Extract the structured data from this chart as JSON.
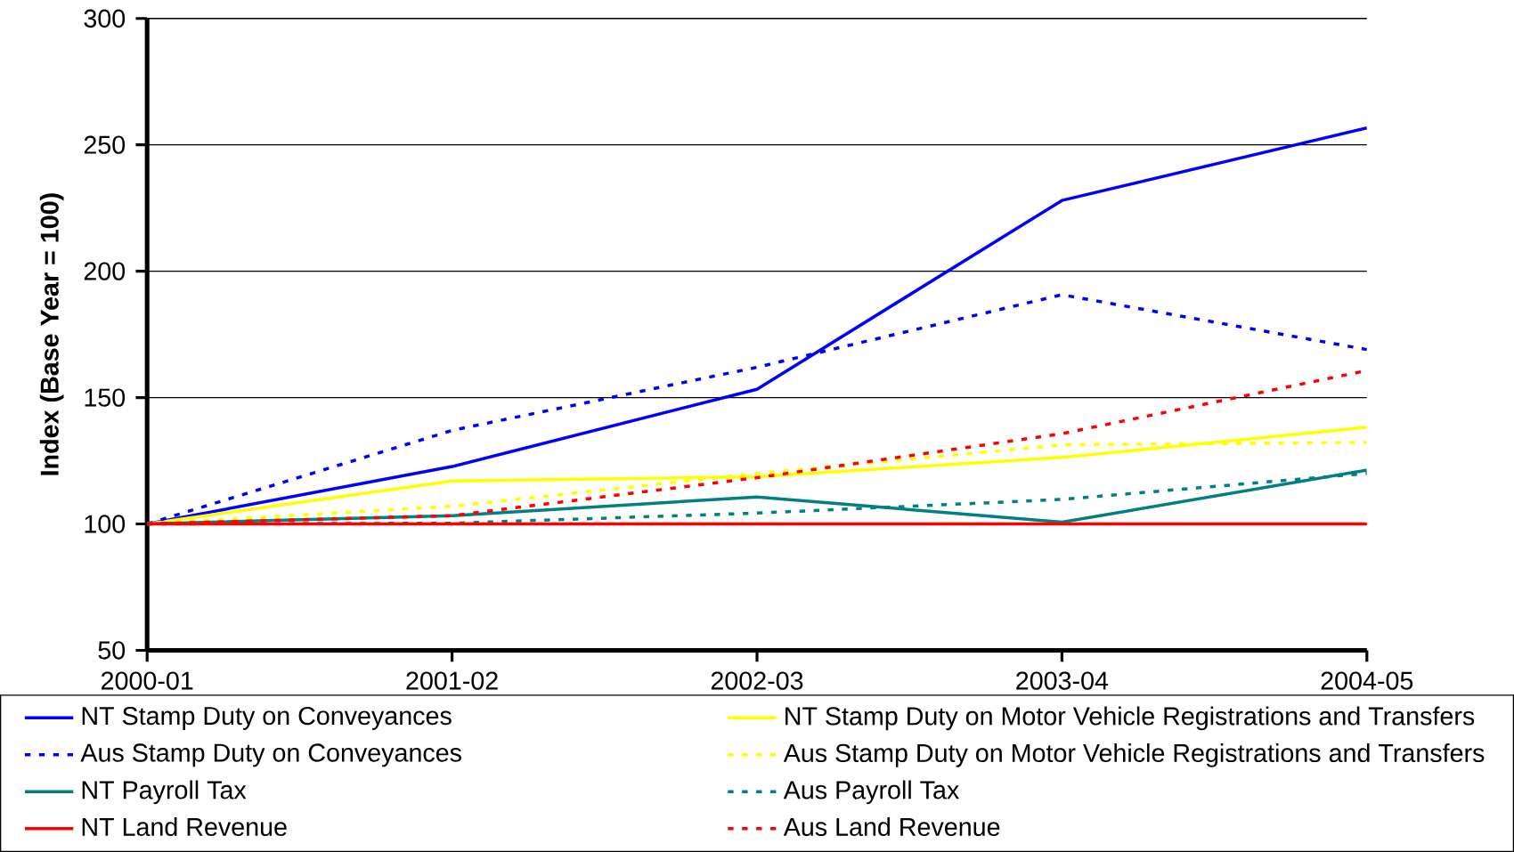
{
  "chart_data": {
    "type": "line",
    "ylabel": "Index (Base Year = 100)",
    "categories": [
      "2000-01",
      "2001-02",
      "2002-03",
      "2003-04",
      "2004-05"
    ],
    "series": [
      {
        "name": "NT Stamp Duty on Conveyances",
        "color": "#0000ff",
        "line_style": "solid",
        "values": [
          100,
          122.7,
          153.3,
          228,
          256.7
        ]
      },
      {
        "name": "NT Stamp Duty on Motor Vehicle Registrations and Transfers",
        "color": "#ffff00",
        "line_style": "solid",
        "values": [
          100,
          117,
          118.7,
          126.3,
          138.3
        ]
      },
      {
        "name": "Aus Stamp Duty on Conveyances",
        "color": "#0000ff",
        "line_style": "dotted",
        "values": [
          100,
          137,
          162,
          190.7,
          169
        ]
      },
      {
        "name": "Aus Stamp Duty on Motor Vehicle Registrations and Transfers",
        "color": "#ffff00",
        "line_style": "dotted",
        "values": [
          100,
          107,
          120,
          131.3,
          132.3
        ]
      },
      {
        "name": "NT Payroll Tax",
        "color": "#008080",
        "line_style": "solid",
        "values": [
          100,
          103.3,
          110.7,
          100.7,
          121.3
        ]
      },
      {
        "name": "Aus Payroll Tax",
        "color": "#008080",
        "line_style": "dotted",
        "values": [
          100,
          100.3,
          104.3,
          109.7,
          120
        ]
      },
      {
        "name": "NT Land Revenue",
        "color": "#ff0000",
        "line_style": "solid",
        "values": [
          100,
          100,
          100,
          100,
          100
        ]
      },
      {
        "name": "Aus Land Revenue",
        "color": "#ff0000",
        "line_style": "dotted",
        "values": [
          100,
          103.3,
          118.3,
          135.7,
          160.7
        ]
      }
    ],
    "ylim": [
      50,
      300
    ],
    "yticks": [
      50,
      100,
      150,
      200,
      250,
      300
    ],
    "grid": "y",
    "legend": "bottom",
    "marker": "none"
  }
}
